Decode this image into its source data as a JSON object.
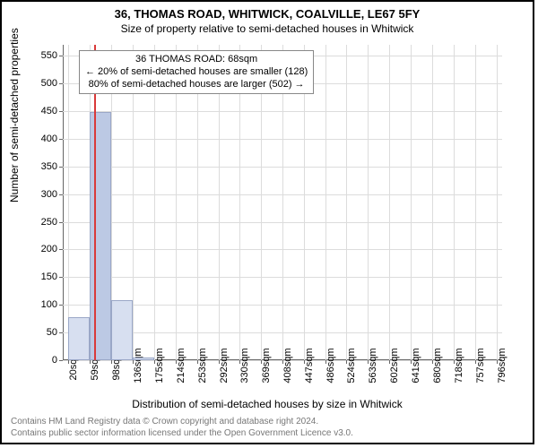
{
  "titles": {
    "line1": "36, THOMAS ROAD, WHITWICK, COALVILLE, LE67 5FY",
    "line2": "Size of property relative to semi-detached houses in Whitwick"
  },
  "ylabel": "Number of semi-detached properties",
  "xlabel": "Distribution of semi-detached houses by size in Whitwick",
  "chart": {
    "type": "histogram",
    "xmin": 10,
    "xmax": 806,
    "ymin": 0,
    "ymax": 570,
    "yticks": [
      0,
      50,
      100,
      150,
      200,
      250,
      300,
      350,
      400,
      450,
      500,
      550
    ],
    "xticks": [
      {
        "v": 20,
        "label": "20sqm"
      },
      {
        "v": 59,
        "label": "59sqm"
      },
      {
        "v": 98,
        "label": "98sqm"
      },
      {
        "v": 136,
        "label": "136sqm"
      },
      {
        "v": 175,
        "label": "175sqm"
      },
      {
        "v": 214,
        "label": "214sqm"
      },
      {
        "v": 253,
        "label": "253sqm"
      },
      {
        "v": 292,
        "label": "292sqm"
      },
      {
        "v": 330,
        "label": "330sqm"
      },
      {
        "v": 369,
        "label": "369sqm"
      },
      {
        "v": 408,
        "label": "408sqm"
      },
      {
        "v": 447,
        "label": "447sqm"
      },
      {
        "v": 486,
        "label": "486sqm"
      },
      {
        "v": 524,
        "label": "524sqm"
      },
      {
        "v": 563,
        "label": "563sqm"
      },
      {
        "v": 602,
        "label": "602sqm"
      },
      {
        "v": 641,
        "label": "641sqm"
      },
      {
        "v": 680,
        "label": "680sqm"
      },
      {
        "v": 718,
        "label": "718sqm"
      },
      {
        "v": 757,
        "label": "757sqm"
      },
      {
        "v": 796,
        "label": "796sqm"
      }
    ],
    "bars": [
      {
        "x0": 20,
        "x1": 59,
        "y": 78,
        "fill": "#d7dff0"
      },
      {
        "x0": 59,
        "x1": 98,
        "y": 448,
        "fill": "#bcc9e4"
      },
      {
        "x0": 98,
        "x1": 136,
        "y": 108,
        "fill": "#d7dff0"
      },
      {
        "x0": 136,
        "x1": 175,
        "y": 5,
        "fill": "#d7dff0"
      }
    ],
    "bar_border": "#9aa7c7",
    "marker": {
      "x": 68,
      "color": "#d93a3a"
    },
    "grid_color": "#dcdcdc",
    "background_color": "#ffffff"
  },
  "annotation": {
    "line1": "36 THOMAS ROAD: 68sqm",
    "line2": "← 20% of semi-detached houses are smaller (128)",
    "line3": "80% of semi-detached houses are larger (502) →"
  },
  "footer": {
    "line1": "Contains HM Land Registry data © Crown copyright and database right 2024.",
    "line2": "Contains public sector information licensed under the Open Government Licence v3.0."
  }
}
